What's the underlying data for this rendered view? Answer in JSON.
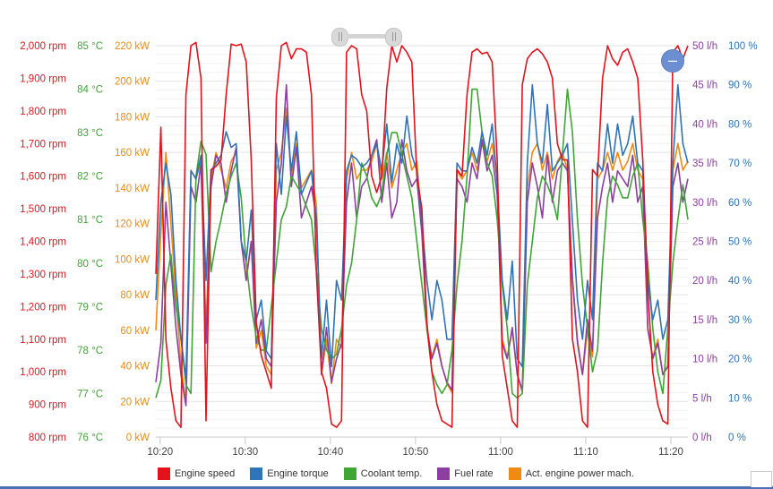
{
  "chart_data": {
    "type": "line",
    "xlabel": "",
    "x_ticks": [
      "10:20",
      "10:30",
      "10:40",
      "10:50",
      "11:00",
      "11:10",
      "11:20"
    ],
    "x_start": "10:19:30",
    "x_end": "11:22:00",
    "grid": true,
    "legend_position": "bottom",
    "axes": {
      "speed": {
        "ticks": [
          "800 rpm",
          "900 rpm",
          "1,000 rpm",
          "1,100 rpm",
          "1,200 rpm",
          "1,300 rpm",
          "1,400 rpm",
          "1,500 rpm",
          "1,600 rpm",
          "1,700 rpm",
          "1,800 rpm",
          "1,900 rpm",
          "2,000 rpm"
        ],
        "range": [
          800,
          2000
        ],
        "color": "#e4121c"
      },
      "coolant": {
        "ticks": [
          "76 °C",
          "77 °C",
          "78 °C",
          "79 °C",
          "80 °C",
          "81 °C",
          "82 °C",
          "83 °C",
          "84 °C",
          "85 °C"
        ],
        "range": [
          76,
          85
        ],
        "color": "#3fa535"
      },
      "power": {
        "ticks": [
          "0 kW",
          "20 kW",
          "40 kW",
          "60 kW",
          "80 kW",
          "100 kW",
          "120 kW",
          "140 kW",
          "160 kW",
          "180 kW",
          "200 kW",
          "220 kW"
        ],
        "range": [
          0,
          220
        ],
        "color": "#f08a10"
      },
      "fuel": {
        "ticks": [
          "0 l/h",
          "5 l/h",
          "10 l/h",
          "15 l/h",
          "20 l/h",
          "25 l/h",
          "30 l/h",
          "35 l/h",
          "40 l/h",
          "45 l/h",
          "50 l/h"
        ],
        "range": [
          0,
          50
        ],
        "color": "#8c3fa0"
      },
      "torque": {
        "ticks": [
          "0 %",
          "10 %",
          "20 %",
          "30 %",
          "40 %",
          "50 %",
          "60 %",
          "70 %",
          "80 %",
          "90 %",
          "100 %"
        ],
        "range": [
          0,
          100
        ],
        "color": "#2f73b8"
      }
    },
    "series": [
      {
        "name": "Engine speed",
        "color": "#e4121c",
        "axis": "speed",
        "values": [
          1300,
          1750,
          1100,
          950,
          850,
          830,
          1850,
          2000,
          2010,
          1900,
          850,
          1620,
          1630,
          1650,
          1850,
          2005,
          2000,
          2005,
          1950,
          1650,
          1150,
          1050,
          1000,
          950,
          1840,
          2000,
          2010,
          1960,
          1990,
          1990,
          1980,
          1850,
          1300,
          1000,
          950,
          840,
          830,
          850,
          1980,
          2000,
          1990,
          1850,
          1800,
          1600,
          1550,
          1600,
          1870,
          2000,
          1950,
          2000,
          1980,
          1950,
          1600,
          1500,
          1150,
          1000,
          900,
          850,
          840,
          830,
          1620,
          1600,
          1850,
          1980,
          1990,
          1975,
          1980,
          1950,
          1650,
          1050,
          950,
          850,
          830,
          1880,
          1960,
          1980,
          1990,
          1975,
          1950,
          1900,
          1700,
          1650,
          1650,
          1100,
          1000,
          850,
          830,
          1620,
          1600,
          1900,
          2000,
          1960,
          1940,
          1980,
          1990,
          1950,
          1900,
          1650,
          1250,
          1000,
          900,
          850,
          840,
          1980,
          2000,
          1960,
          2000
        ]
      },
      {
        "name": "Engine torque",
        "color": "#2f73b8",
        "axis": "torque",
        "values": [
          35,
          60,
          70,
          62,
          40,
          25,
          15,
          68,
          66,
          72,
          40,
          68,
          70,
          72,
          78,
          74,
          75,
          50,
          45,
          58,
          30,
          35,
          22,
          20,
          75,
          62,
          82,
          68,
          78,
          62,
          65,
          68,
          55,
          20,
          35,
          18,
          40,
          35,
          68,
          72,
          71,
          69,
          70,
          72,
          75,
          68,
          80,
          65,
          75,
          70,
          82,
          72,
          68,
          55,
          40,
          30,
          40,
          35,
          25,
          25,
          70,
          68,
          68,
          74,
          70,
          78,
          72,
          80,
          65,
          40,
          30,
          45,
          20,
          18,
          70,
          90,
          75,
          70,
          85,
          68,
          70,
          72,
          75,
          55,
          35,
          25,
          40,
          30,
          70,
          68,
          80,
          70,
          80,
          72,
          75,
          82,
          70,
          68,
          40,
          30,
          35,
          25,
          30,
          70,
          90,
          75,
          70
        ]
      },
      {
        "name": "Coolant temp.",
        "color": "#3fa535",
        "axis": "coolant",
        "values": [
          76.9,
          77.3,
          79.5,
          80.2,
          79.0,
          78.3,
          77.2,
          77.0,
          82.0,
          82.8,
          82.5,
          79.8,
          80.5,
          81.0,
          81.6,
          82.0,
          82.3,
          81.5,
          80.0,
          79.0,
          78.3,
          78.0,
          78.0,
          79.0,
          80.0,
          81.0,
          81.3,
          82.0,
          81.8,
          81.6,
          81.3,
          81.0,
          79.8,
          78.5,
          78.0,
          77.8,
          77.9,
          78.5,
          79.5,
          80.0,
          81.0,
          82.3,
          82.0,
          81.5,
          81.3,
          81.6,
          82.5,
          83.0,
          83.0,
          82.5,
          82.0,
          81.5,
          80.5,
          79.5,
          78.5,
          77.5,
          77.2,
          77.0,
          77.2,
          78.0,
          79.5,
          80.5,
          82.0,
          84.0,
          84.0,
          83.0,
          82.3,
          82.0,
          81.0,
          79.5,
          78.5,
          77.0,
          76.9,
          77.0,
          79.5,
          80.5,
          81.5,
          82.0,
          81.8,
          81.5,
          81.0,
          82.5,
          84.0,
          83.0,
          81.0,
          79.5,
          78.5,
          77.5,
          78.0,
          80.0,
          81.5,
          82.0,
          81.8,
          81.5,
          81.5,
          82.0,
          82.3,
          81.0,
          80.0,
          78.5,
          77.5,
          77.0,
          78.5,
          80.0,
          81.0,
          81.8,
          81.0
        ]
      },
      {
        "name": "Fuel rate",
        "color": "#8c3fa0",
        "axis": "fuel",
        "values": [
          7,
          12,
          30,
          22,
          14,
          8,
          4,
          32,
          30,
          35,
          12,
          32,
          36,
          35,
          30,
          34,
          37,
          25,
          20,
          25,
          12,
          15,
          10,
          9,
          30,
          35,
          45,
          32,
          37,
          28,
          30,
          32,
          28,
          8,
          14,
          7,
          10,
          12,
          30,
          35,
          28,
          32,
          33,
          36,
          38,
          30,
          35,
          28,
          30,
          38,
          34,
          32,
          33,
          26,
          14,
          10,
          12,
          9,
          7,
          6,
          33,
          32,
          30,
          35,
          33,
          38,
          34,
          36,
          31,
          12,
          10,
          14,
          8,
          6,
          30,
          35,
          32,
          28,
          36,
          30,
          34,
          35,
          34,
          20,
          12,
          8,
          15,
          11,
          28,
          32,
          35,
          30,
          34,
          33,
          32,
          36,
          30,
          32,
          14,
          10,
          12,
          8,
          9,
          32,
          35,
          30,
          33
        ]
      },
      {
        "name": "Act. engine power mach.",
        "color": "#f08a10",
        "axis": "power",
        "values": [
          60,
          115,
          160,
          120,
          80,
          40,
          20,
          150,
          145,
          155,
          60,
          145,
          160,
          150,
          140,
          155,
          160,
          110,
          90,
          110,
          50,
          60,
          40,
          35,
          150,
          160,
          185,
          145,
          165,
          140,
          145,
          150,
          130,
          35,
          55,
          30,
          55,
          50,
          145,
          160,
          145,
          150,
          150,
          155,
          165,
          145,
          160,
          140,
          150,
          160,
          165,
          150,
          155,
          120,
          60,
          45,
          55,
          40,
          30,
          25,
          150,
          145,
          150,
          160,
          150,
          165,
          155,
          165,
          145,
          55,
          45,
          60,
          35,
          25,
          140,
          160,
          165,
          150,
          160,
          145,
          155,
          160,
          150,
          90,
          55,
          35,
          60,
          45,
          145,
          150,
          160,
          150,
          160,
          150,
          155,
          165,
          150,
          145,
          60,
          45,
          55,
          35,
          40,
          150,
          165,
          150,
          155
        ]
      }
    ]
  },
  "legend": {
    "items": [
      {
        "label": "Engine speed",
        "color": "#e4121c"
      },
      {
        "label": "Engine torque",
        "color": "#2f73b8"
      },
      {
        "label": "Coolant temp.",
        "color": "#3fa535"
      },
      {
        "label": "Fuel rate",
        "color": "#8c3fa0"
      },
      {
        "label": "Act. engine power mach.",
        "color": "#f08a10"
      }
    ]
  },
  "controls": {
    "zoom_out_label": "–"
  }
}
